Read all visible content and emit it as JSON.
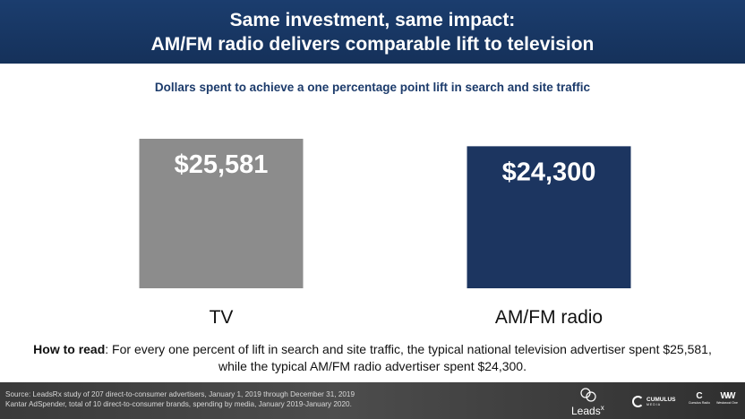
{
  "header": {
    "title_line1": "Same investment, same impact:",
    "title_line2": "AM/FM radio delivers comparable lift to television",
    "background_color": "#1b3d6e"
  },
  "chart_data": {
    "type": "bar",
    "title": "Dollars spent to achieve a one percentage point lift in search and site traffic",
    "categories": [
      "TV",
      "AM/FM radio"
    ],
    "values": [
      25581,
      24300
    ],
    "value_labels": [
      "$25,581",
      "$24,300"
    ],
    "colors": [
      "#8c8c8c",
      "#1c3560"
    ],
    "xlabel": "",
    "ylabel": "",
    "ylim": [
      0,
      25581
    ],
    "grid": false,
    "legend": "none"
  },
  "how_to_read": {
    "label": "How to read",
    "text": ": For every one percent of lift in search and site traffic, the typical national television advertiser spent $25,581, while the typical AM/FM radio advertiser spent $24,300."
  },
  "footer": {
    "source_line1": "Source: LeadsRx study of 207 direct-to-consumer advertisers, January 1, 2019 through December 31, 2019",
    "source_line2": "Kantar AdSpender, total of 10 direct-to-consumer brands, spending by media, January 2019-January 2020.",
    "logo_leads": "Leads",
    "logo_leads_suffix": "x",
    "logo_cumulus": "CUMULUS",
    "logo_cumulus_sub": "MEDIA",
    "logo_small1_mark": "C",
    "logo_small1_text": "Cumulus Radio",
    "logo_small2_mark": "WW",
    "logo_small2_text": "Westwood One"
  }
}
